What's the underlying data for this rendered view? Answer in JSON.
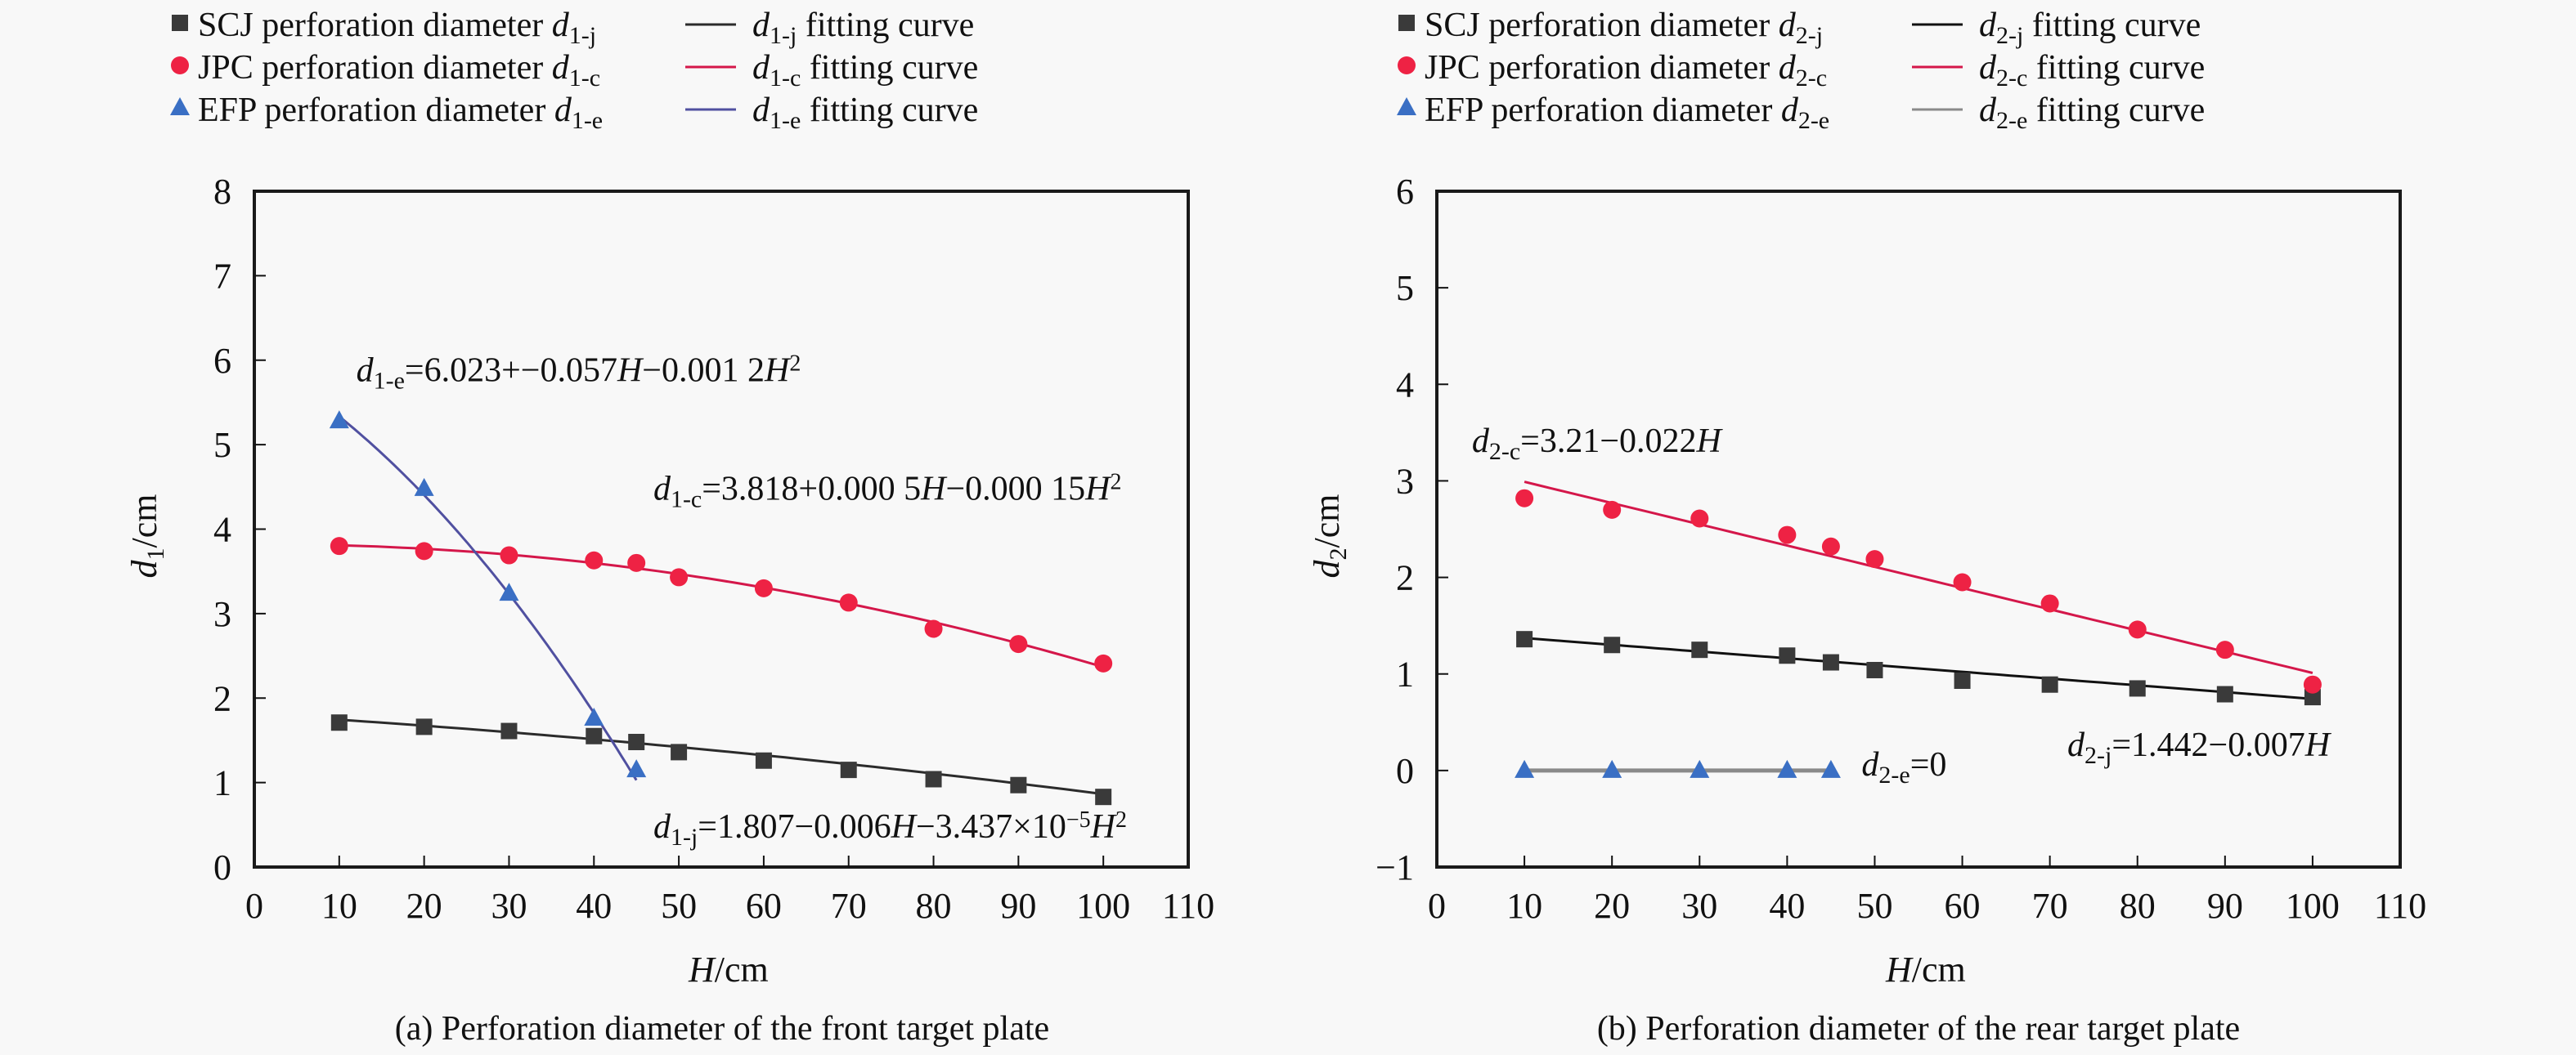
{
  "chart_data": [
    {
      "id": "a",
      "type": "scatter",
      "caption": "(a) Perforation diameter of the front target plate",
      "xlabel": {
        "var": "H",
        "unit": "/cm"
      },
      "ylabel": {
        "var": "d",
        "sub": "1",
        "unit": "/cm"
      },
      "xlim": [
        0,
        110
      ],
      "ylim": [
        0,
        8
      ],
      "xticks": [
        0,
        10,
        20,
        30,
        40,
        50,
        60,
        70,
        80,
        90,
        100,
        110
      ],
      "yticks": [
        0,
        1,
        2,
        3,
        4,
        5,
        6,
        7,
        8
      ],
      "grid": false,
      "legend_position": "top",
      "legend": [
        {
          "marker": "square",
          "prefix": "SCJ perforation diameter ",
          "var": "d",
          "sub": "1-j",
          "fit_label": " fitting curve"
        },
        {
          "marker": "circle",
          "prefix": "JPC perforation diameter ",
          "var": "d",
          "sub": "1-c",
          "fit_label": " fitting curve"
        },
        {
          "marker": "triangle",
          "prefix": "EFP perforation diameter ",
          "var": "d",
          "sub": "1-e",
          "fit_label": " fitting curve"
        }
      ],
      "series": [
        {
          "name": "SCJ perforation diameter d1-j",
          "marker": "square",
          "color": "#3a3a3a",
          "fit_color": "#2b2b2b",
          "x": [
            10,
            20,
            30,
            40,
            45,
            50,
            60,
            70,
            80,
            90,
            100
          ],
          "y": [
            1.71,
            1.66,
            1.61,
            1.55,
            1.48,
            1.36,
            1.26,
            1.15,
            1.04,
            0.97,
            0.83
          ],
          "fit": {
            "type": "poly",
            "coef": [
              1.807,
              -0.006,
              -3.437e-05
            ],
            "range": [
              10,
              100
            ]
          }
        },
        {
          "name": "JPC perforation diameter d1-c",
          "marker": "circle",
          "color": "#ee2244",
          "fit_color": "#d4174a",
          "x": [
            10,
            20,
            30,
            40,
            45,
            50,
            60,
            70,
            80,
            90,
            100
          ],
          "y": [
            3.8,
            3.74,
            3.69,
            3.63,
            3.6,
            3.43,
            3.3,
            3.13,
            2.82,
            2.64,
            2.41
          ],
          "fit": {
            "type": "poly",
            "coef": [
              3.818,
              0.0005,
              -0.00015
            ],
            "range": [
              10,
              100
            ]
          }
        },
        {
          "name": "EFP perforation diameter d1-e",
          "marker": "triangle",
          "color": "#3a6fc4",
          "fit_color": "#5050a0",
          "x": [
            10,
            20,
            30,
            40,
            45
          ],
          "y": [
            5.28,
            4.48,
            3.24,
            1.76,
            1.15
          ],
          "fit": {
            "type": "poly",
            "coef": [
              6.023,
              -0.057,
              -0.0012
            ],
            "range": [
              10,
              45
            ]
          }
        }
      ],
      "annotations": [
        {
          "id": "eq_e",
          "var": "d",
          "sub": "1-e",
          "text": "=6.023+−0.057",
          "H": "H",
          "rest": "−0.001 2",
          "H2": "H",
          "sup": "2",
          "at": [
            12,
            5.75
          ]
        },
        {
          "id": "eq_c",
          "var": "d",
          "sub": "1-c",
          "text": "=3.818+0.000 5",
          "H": "H",
          "rest": "−0.000 15",
          "H2": "H",
          "sup": "2",
          "at": [
            47,
            4.35
          ]
        },
        {
          "id": "eq_j",
          "var": "d",
          "sub": "1-j",
          "text": "=1.807−0.006",
          "H": "H",
          "rest": "−3.437×10",
          "sup_mid": "−5",
          "H2": "H",
          "sup": "2",
          "at": [
            47,
            0.35
          ]
        }
      ]
    },
    {
      "id": "b",
      "type": "scatter",
      "caption": "(b) Perforation diameter of the rear target plate",
      "xlabel": {
        "var": "H",
        "unit": "/cm"
      },
      "ylabel": {
        "var": "d",
        "sub": "2",
        "unit": "/cm"
      },
      "xlim": [
        0,
        110
      ],
      "ylim": [
        -1,
        6
      ],
      "xticks": [
        0,
        10,
        20,
        30,
        40,
        50,
        60,
        70,
        80,
        90,
        100,
        110
      ],
      "yticks": [
        -1,
        0,
        1,
        2,
        3,
        4,
        5,
        6
      ],
      "grid": false,
      "legend_position": "top",
      "legend": [
        {
          "marker": "square",
          "prefix": "SCJ perforation diameter ",
          "var": "d",
          "sub": "2-j",
          "fit_label": " fitting curve"
        },
        {
          "marker": "circle",
          "prefix": "JPC perforation diameter ",
          "var": "d",
          "sub": "2-c",
          "fit_label": " fitting curve"
        },
        {
          "marker": "triangle",
          "prefix": "EFP perforation diameter ",
          "var": "d",
          "sub": "2-e",
          "fit_label": " fitting curve"
        }
      ],
      "series": [
        {
          "name": "SCJ perforation diameter d2-j",
          "marker": "square",
          "color": "#3a3a3a",
          "fit_color": "#111111",
          "x": [
            10,
            20,
            30,
            40,
            45,
            50,
            60,
            70,
            80,
            90,
            100
          ],
          "y": [
            1.36,
            1.3,
            1.25,
            1.19,
            1.12,
            1.04,
            0.93,
            0.89,
            0.85,
            0.79,
            0.76
          ],
          "fit": {
            "type": "poly",
            "coef": [
              1.442,
              -0.007
            ],
            "range": [
              10,
              100
            ]
          }
        },
        {
          "name": "JPC perforation diameter d2-c",
          "marker": "circle",
          "color": "#ee2244",
          "fit_color": "#d4174a",
          "x": [
            10,
            20,
            30,
            40,
            45,
            50,
            60,
            70,
            80,
            90,
            100
          ],
          "y": [
            2.82,
            2.7,
            2.61,
            2.44,
            2.32,
            2.19,
            1.95,
            1.73,
            1.46,
            1.25,
            0.89
          ],
          "fit": {
            "type": "poly",
            "coef": [
              3.21,
              -0.022
            ],
            "range": [
              10,
              100
            ]
          }
        },
        {
          "name": "EFP perforation diameter d2-e",
          "marker": "triangle",
          "color": "#3a6fc4",
          "fit_color": "#8a8a8a",
          "x": [
            10,
            20,
            30,
            40,
            45
          ],
          "y": [
            0,
            0,
            0,
            0,
            0
          ],
          "fit": {
            "type": "poly",
            "coef": [
              0
            ],
            "range": [
              10,
              45
            ]
          }
        }
      ],
      "annotations": [
        {
          "id": "eq_c",
          "var": "d",
          "sub": "2-c",
          "text": "=3.21−0.022",
          "H": "H",
          "at": [
            4,
            3.3
          ]
        },
        {
          "id": "eq_j",
          "var": "d",
          "sub": "2-j",
          "text": "=1.442−0.007",
          "H": "H",
          "at": [
            72,
            0.15
          ]
        },
        {
          "id": "eq_e",
          "var": "d",
          "sub": "2-e",
          "text": "=0",
          "at": [
            48.5,
            -0.05
          ]
        }
      ]
    }
  ]
}
